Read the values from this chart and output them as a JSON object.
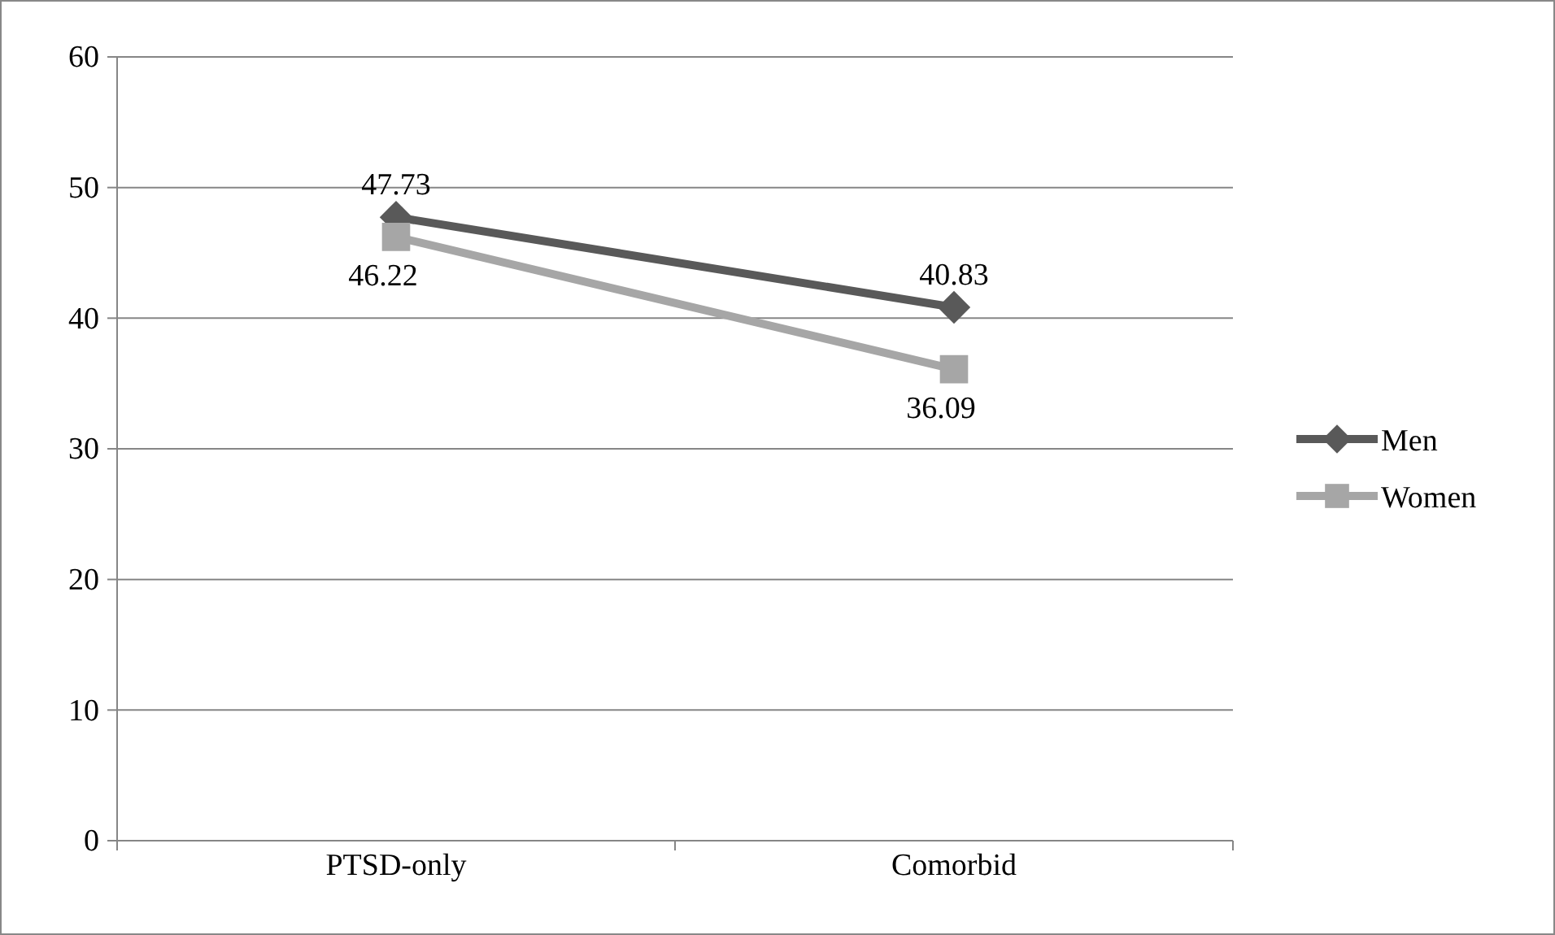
{
  "chart_data": {
    "type": "line",
    "categories": [
      "PTSD-only",
      "Comorbid"
    ],
    "series": [
      {
        "name": "Men",
        "color": "#595959",
        "values": [
          47.73,
          40.83
        ],
        "marker": "diamond"
      },
      {
        "name": "Women",
        "color": "#a6a6a6",
        "values": [
          46.22,
          36.09
        ],
        "marker": "square"
      }
    ],
    "ylim": [
      0,
      60
    ],
    "yticks": [
      0,
      10,
      20,
      30,
      40,
      50,
      60
    ],
    "grid": "y",
    "legend": "right",
    "data_labels": true
  }
}
